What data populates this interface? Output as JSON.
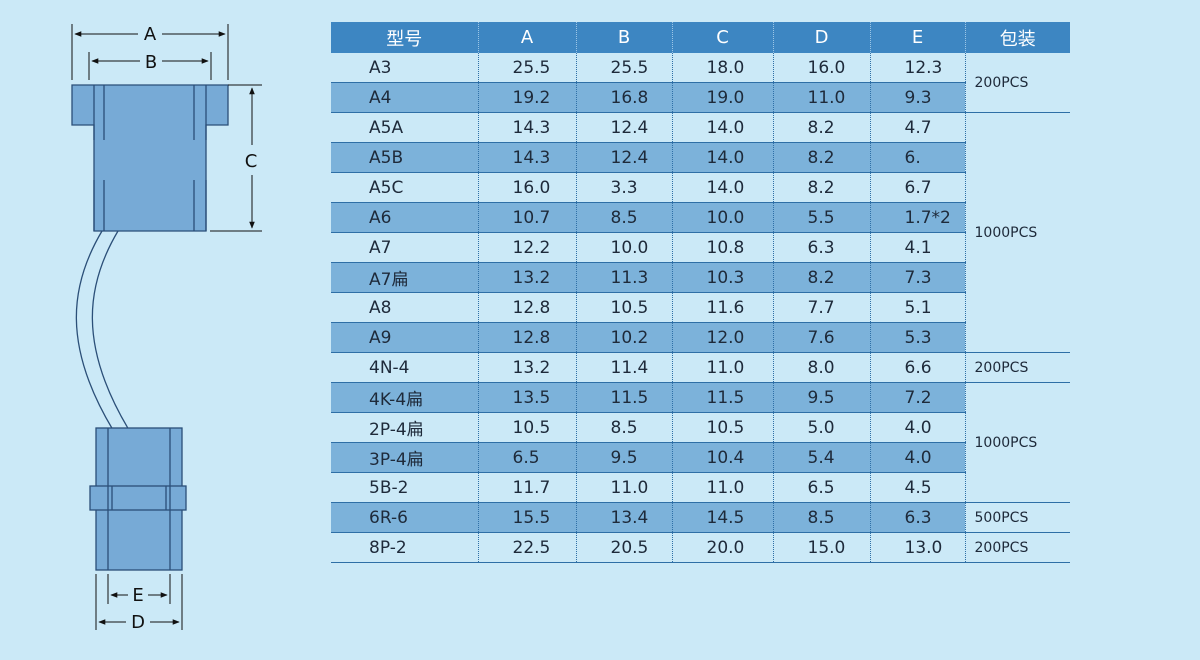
{
  "dimension_labels": {
    "a": "A",
    "b": "B",
    "c": "C",
    "d": "D",
    "e": "E"
  },
  "headers": {
    "model": "型号",
    "a": "A",
    "b": "B",
    "c": "C",
    "d": "D",
    "e": "E",
    "pack": "包装"
  },
  "rows": [
    {
      "model": "A3",
      "a": "25.5",
      "b": "25.5",
      "c": "18.0",
      "d": "16.0",
      "e": "12.3"
    },
    {
      "model": "A4",
      "a": "19.2",
      "b": "16.8",
      "c": "19.0",
      "d": "11.0",
      "e": "9.3"
    },
    {
      "model": "A5A",
      "a": "14.3",
      "b": "12.4",
      "c": "14.0",
      "d": "8.2",
      "e": "4.7"
    },
    {
      "model": "A5B",
      "a": "14.3",
      "b": "12.4",
      "c": "14.0",
      "d": "8.2",
      "e": "6."
    },
    {
      "model": "A5C",
      "a": "16.0",
      "b": "3.3",
      "c": "14.0",
      "d": "8.2",
      "e": "6.7"
    },
    {
      "model": "A6",
      "a": "10.7",
      "b": "8.5",
      "c": "10.0",
      "d": "5.5",
      "e": "1.7*2"
    },
    {
      "model": "A7",
      "a": "12.2",
      "b": "10.0",
      "c": "10.8",
      "d": "6.3",
      "e": "4.1"
    },
    {
      "model": "A7扁",
      "a": "13.2",
      "b": "11.3",
      "c": "10.3",
      "d": "8.2",
      "e": "7.3"
    },
    {
      "model": "A8",
      "a": "12.8",
      "b": "10.5",
      "c": "11.6",
      "d": "7.7",
      "e": "5.1"
    },
    {
      "model": "A9",
      "a": "12.8",
      "b": "10.2",
      "c": "12.0",
      "d": "7.6",
      "e": "5.3"
    },
    {
      "model": "4N-4",
      "a": "13.2",
      "b": "11.4",
      "c": "11.0",
      "d": "8.0",
      "e": "6.6"
    },
    {
      "model": "4K-4扁",
      "a": "13.5",
      "b": "11.5",
      "c": "11.5",
      "d": "9.5",
      "e": "7.2"
    },
    {
      "model": "2P-4扁",
      "a": "10.5",
      "b": "8.5",
      "c": "10.5",
      "d": "5.0",
      "e": "4.0"
    },
    {
      "model": "3P-4扁",
      "a": "6.5",
      "b": "9.5",
      "c": "10.4",
      "d": "5.4",
      "e": "4.0"
    },
    {
      "model": "5B-2",
      "a": "11.7",
      "b": "11.0",
      "c": "11.0",
      "d": "6.5",
      "e": "4.5"
    },
    {
      "model": "6R-6",
      "a": "15.5",
      "b": "13.4",
      "c": "14.5",
      "d": "8.5",
      "e": "6.3"
    },
    {
      "model": "8P-2",
      "a": "22.5",
      "b": "20.5",
      "c": "20.0",
      "d": "15.0",
      "e": "13.0"
    }
  ],
  "packaging": [
    {
      "label": "200PCS",
      "rowspan": 2
    },
    {
      "label": "1000PCS",
      "rowspan": 8
    },
    {
      "label": "200PCS",
      "rowspan": 1
    },
    {
      "label": "1000PCS",
      "rowspan": 4
    },
    {
      "label": "500PCS",
      "rowspan": 1
    },
    {
      "label": "200PCS",
      "rowspan": 1
    }
  ],
  "colors": {
    "background": "#cbe9f7",
    "header": "#3d86c2",
    "row_shaded": "#7cb2da",
    "part_fill": "#77aad6",
    "grid_line": "#2e6fa6"
  }
}
